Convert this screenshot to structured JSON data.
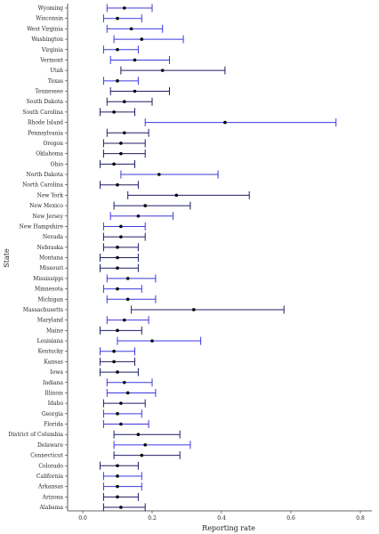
{
  "chart_data": {
    "type": "scatter",
    "subtype": "point-range",
    "xlabel": "Reporting rate",
    "ylabel": "State",
    "xlim": [
      0,
      0.81
    ],
    "xticks": [
      0.0,
      0.2,
      0.4,
      0.6,
      0.8
    ],
    "xtick_labels": [
      "0.0",
      "0.2",
      "0.4",
      "0.6",
      "0.8"
    ],
    "grid": false,
    "colors": {
      "blue": "#3b38e0",
      "bluelight": "#6b6bf0",
      "dark": "#1e1e66",
      "point": "#000000"
    },
    "states": [
      "Wyoming",
      "Wisconsin",
      "West Virginia",
      "Washington",
      "Virginia",
      "Vermont",
      "Utah",
      "Texas",
      "Tennessee",
      "South Dakota",
      "South Carolina",
      "Rhode Island",
      "Pennsylvania",
      "Oregon",
      "Oklahoma",
      "Ohio",
      "North Dakota",
      "North Carolina",
      "New York",
      "New Mexico",
      "New Jersey",
      "New Hampshire",
      "Nevada",
      "Nebraska",
      "Montana",
      "Missouri",
      "Mississippi",
      "Minnesota",
      "Michigan",
      "Massachusetts",
      "Maryland",
      "Maine",
      "Louisiana",
      "Kentucky",
      "Kansas",
      "Iowa",
      "Indiana",
      "Illinois",
      "Idaho",
      "Georgia",
      "Florida",
      "District of Columbia",
      "Delaware",
      "Connecticut",
      "Colorado",
      "California",
      "Arkansas",
      "Arizona",
      "Alabama"
    ],
    "estimate": [
      0.12,
      0.1,
      0.14,
      0.17,
      0.1,
      0.15,
      0.23,
      0.1,
      0.15,
      0.12,
      0.09,
      0.41,
      0.12,
      0.11,
      0.11,
      0.09,
      0.22,
      0.1,
      0.27,
      0.18,
      0.16,
      0.11,
      0.11,
      0.1,
      0.1,
      0.1,
      0.13,
      0.1,
      0.13,
      0.32,
      0.12,
      0.1,
      0.2,
      0.09,
      0.09,
      0.1,
      0.12,
      0.13,
      0.11,
      0.1,
      0.11,
      0.16,
      0.18,
      0.17,
      0.1,
      0.1,
      0.1,
      0.1,
      0.11
    ],
    "lower": [
      0.07,
      0.06,
      0.07,
      0.09,
      0.06,
      0.08,
      0.11,
      0.06,
      0.08,
      0.07,
      0.05,
      0.18,
      0.07,
      0.06,
      0.06,
      0.05,
      0.11,
      0.05,
      0.13,
      0.09,
      0.08,
      0.06,
      0.06,
      0.06,
      0.05,
      0.05,
      0.07,
      0.06,
      0.07,
      0.14,
      0.07,
      0.05,
      0.1,
      0.05,
      0.05,
      0.05,
      0.07,
      0.07,
      0.06,
      0.06,
      0.06,
      0.09,
      0.09,
      0.09,
      0.05,
      0.06,
      0.06,
      0.06,
      0.06
    ],
    "upper": [
      0.2,
      0.17,
      0.23,
      0.29,
      0.16,
      0.25,
      0.41,
      0.16,
      0.25,
      0.2,
      0.15,
      0.73,
      0.19,
      0.18,
      0.18,
      0.15,
      0.39,
      0.16,
      0.48,
      0.31,
      0.26,
      0.18,
      0.18,
      0.16,
      0.16,
      0.16,
      0.21,
      0.17,
      0.21,
      0.58,
      0.19,
      0.17,
      0.34,
      0.15,
      0.15,
      0.16,
      0.2,
      0.21,
      0.18,
      0.17,
      0.19,
      0.28,
      0.31,
      0.28,
      0.16,
      0.17,
      0.17,
      0.16,
      0.18
    ],
    "bar_color_group": [
      "blue",
      "blue",
      "blue",
      "blue",
      "blue",
      "blue",
      "dark",
      "blue",
      "dark",
      "dark",
      "dark",
      "blue",
      "dark",
      "dark",
      "dark",
      "dark",
      "blue",
      "dark",
      "dark",
      "dark",
      "blue",
      "blue",
      "dark",
      "dark",
      "dark",
      "dark",
      "blue",
      "blue",
      "blue",
      "dark",
      "blue",
      "dark",
      "blue",
      "blue",
      "dark",
      "dark",
      "blue",
      "blue",
      "dark",
      "blue",
      "blue",
      "dark",
      "blue",
      "dark",
      "dark",
      "blue",
      "blue",
      "dark",
      "dark"
    ]
  }
}
